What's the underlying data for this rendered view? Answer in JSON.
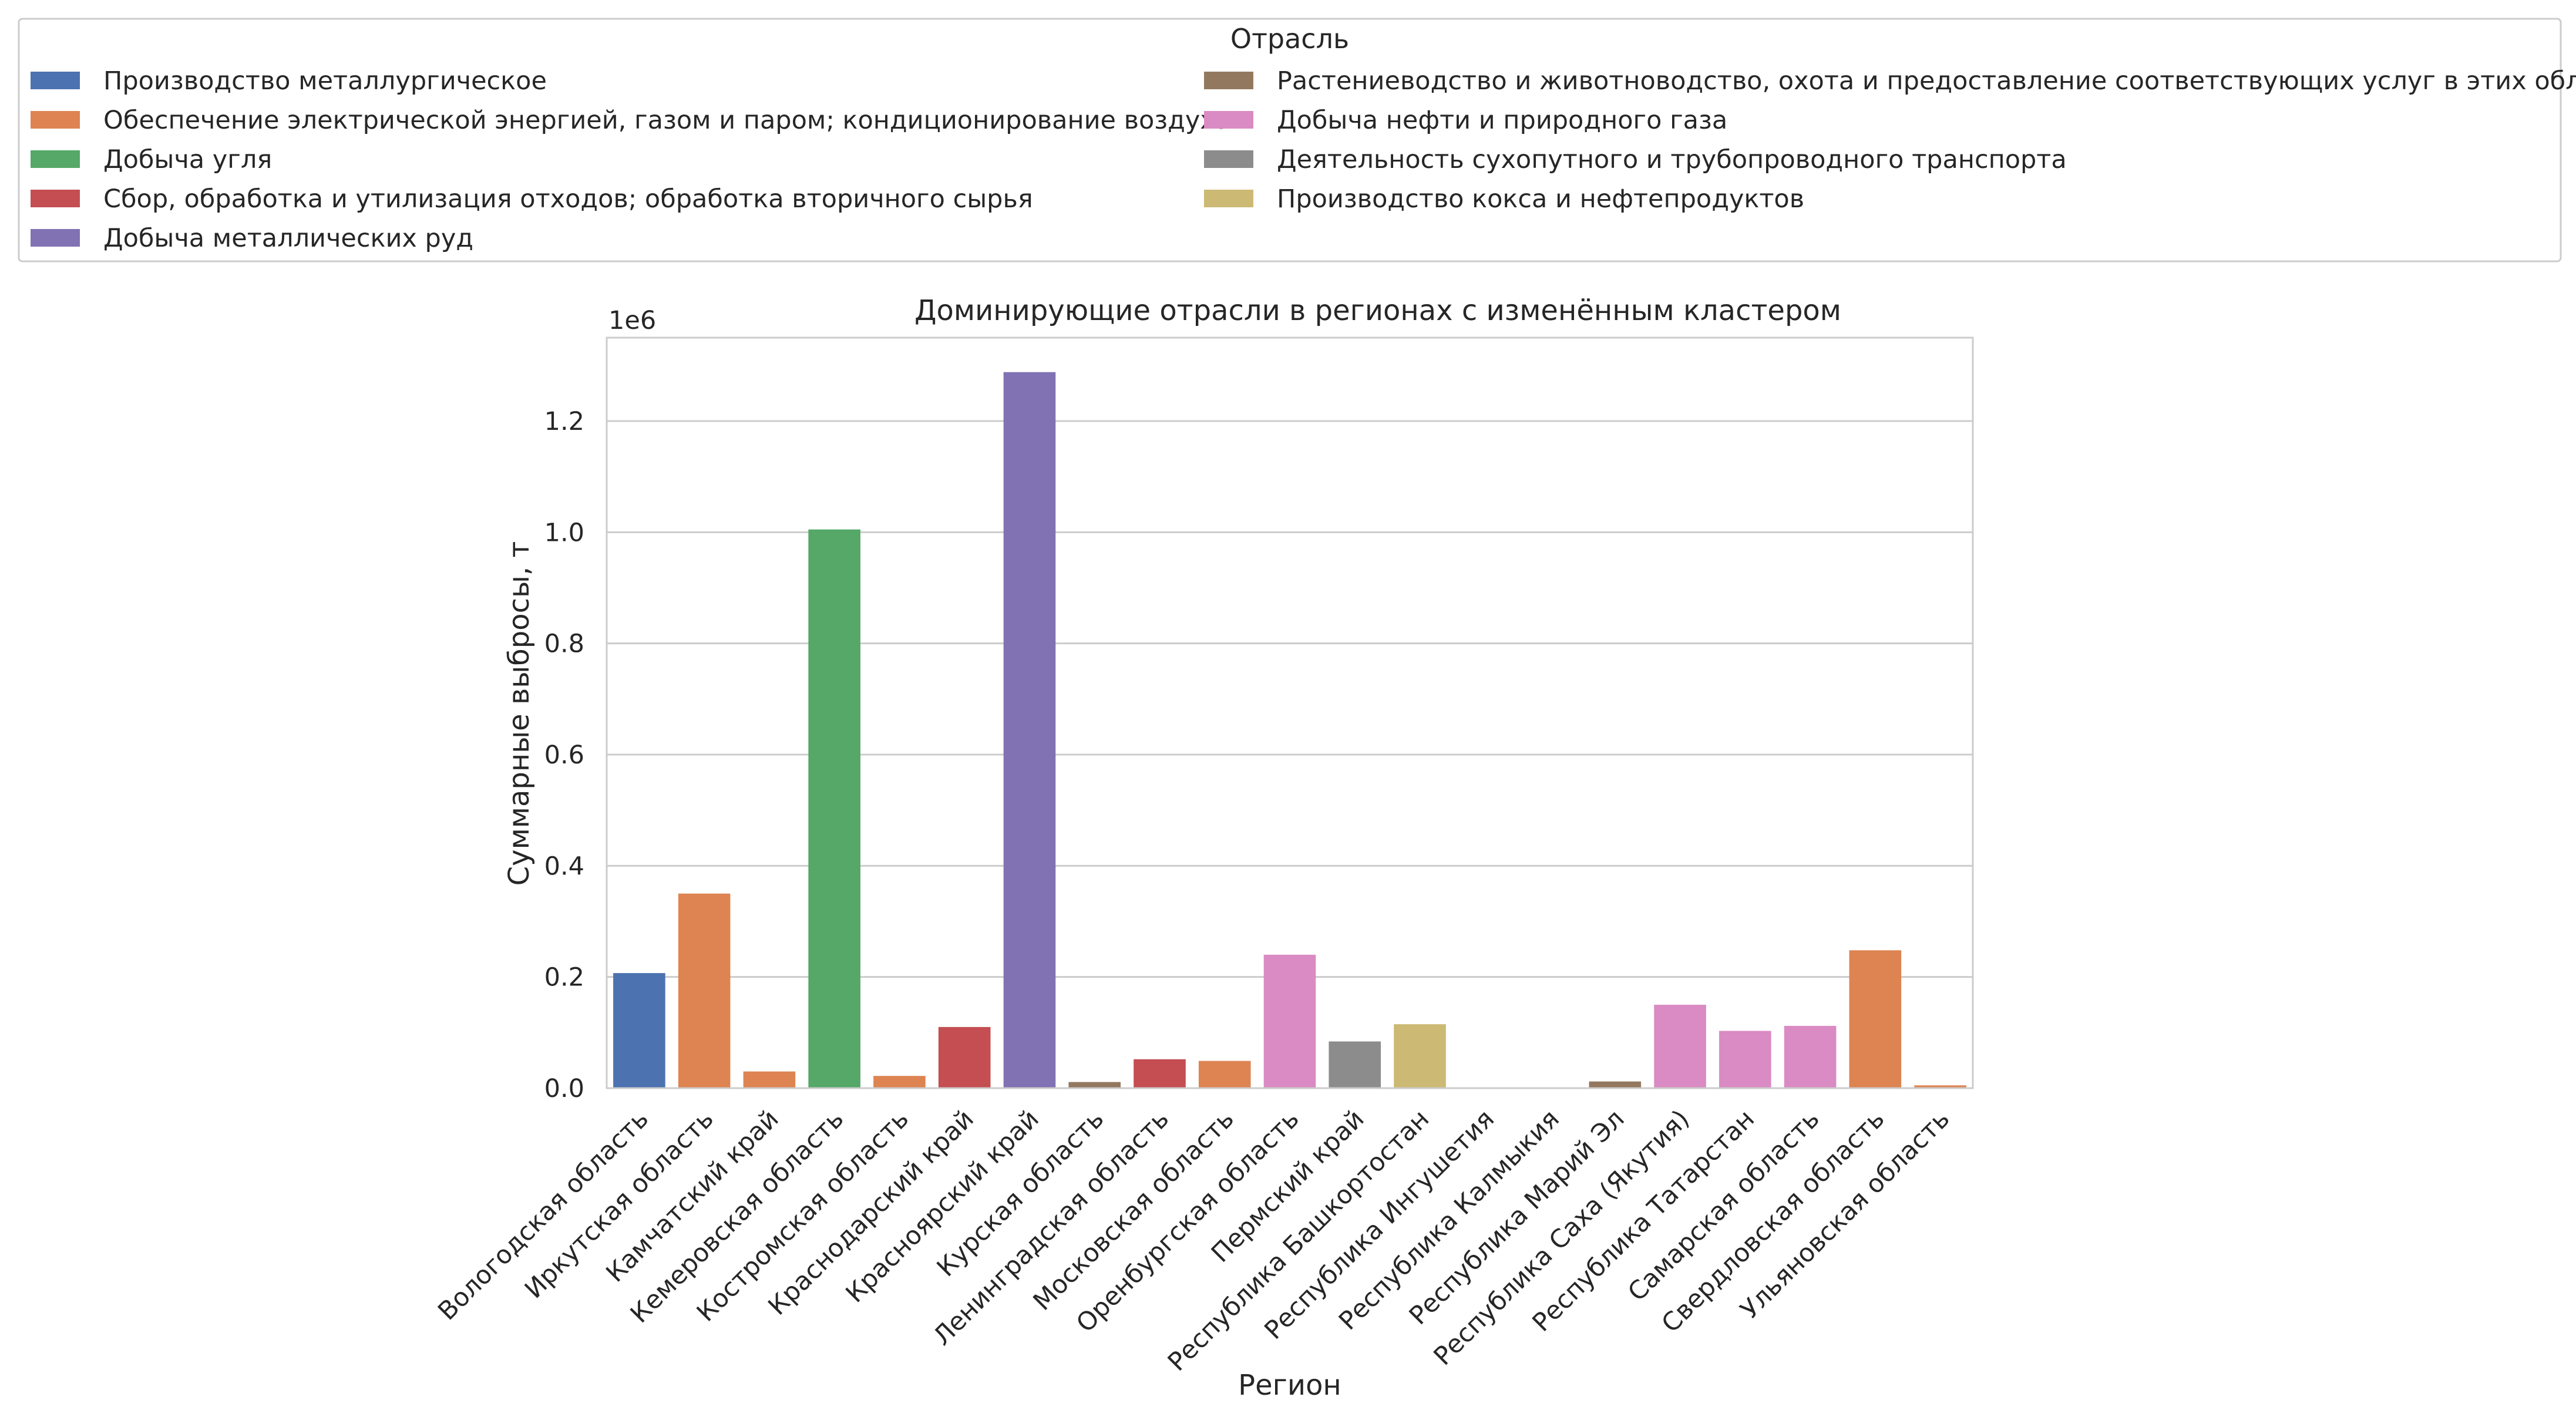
{
  "chart_data": {
    "type": "bar",
    "title": "Доминирующие отрасли в регионах с изменённым кластером",
    "xlabel": "Регион",
    "ylabel": "Суммарные выбросы, т",
    "y_offset_label": "1e6",
    "ylim": [
      0,
      1.35
    ],
    "yticks": [
      "0.0",
      "0.2",
      "0.4",
      "0.6",
      "0.8",
      "1.0",
      "1.2"
    ],
    "grid": true,
    "legend": {
      "title": "Отрасль",
      "placement": "top",
      "entries": [
        {
          "name": "Производство металлургическое",
          "color": "#4c72b0"
        },
        {
          "name": "Обеспечение электрической энергией, газом и паром; кондиционирование воздуха",
          "color": "#dd8452"
        },
        {
          "name": "Добыча угля",
          "color": "#55a868"
        },
        {
          "name": "Сбор, обработка и утилизация отходов; обработка вторичного сырья",
          "color": "#c44e52"
        },
        {
          "name": "Добыча металлических руд",
          "color": "#8172b3"
        },
        {
          "name": "Растениеводство и животноводство, охота и предоставление соответствующих услуг в этих областях",
          "color": "#937860"
        },
        {
          "name": "Добыча нефти и природного газа",
          "color": "#da8bc3"
        },
        {
          "name": "Деятельность сухопутного и трубопроводного транспорта",
          "color": "#8c8c8c"
        },
        {
          "name": "Производство кокса и нефтепродуктов",
          "color": "#ccb974"
        }
      ]
    },
    "categories": [
      "Вологодская область",
      "Иркутская область",
      "Камчатский край",
      "Кемеровская область",
      "Костромская область",
      "Краснодарский край",
      "Красноярский край",
      "Курская область",
      "Ленинградская область",
      "Московская область",
      "Оренбургская область",
      "Пермский край",
      "Республика Башкортостан",
      "Республика Ингушетия",
      "Республика Калмыкия",
      "Республика Марий Эл",
      "Республика Саха (Якутия)",
      "Республика Татарстан",
      "Самарская область",
      "Свердловская область",
      "Ульяновская область"
    ],
    "values": [
      0.207,
      0.35,
      0.03,
      1.005,
      0.022,
      0.11,
      1.288,
      0.011,
      0.052,
      0.049,
      0.24,
      0.084,
      0.115,
      0.0,
      0.0,
      0.012,
      0.15,
      0.103,
      0.112,
      0.248,
      0.005
    ],
    "bar_industry": [
      0,
      1,
      1,
      2,
      1,
      3,
      4,
      5,
      3,
      1,
      6,
      7,
      8,
      1,
      1,
      5,
      6,
      6,
      6,
      1,
      1
    ]
  }
}
